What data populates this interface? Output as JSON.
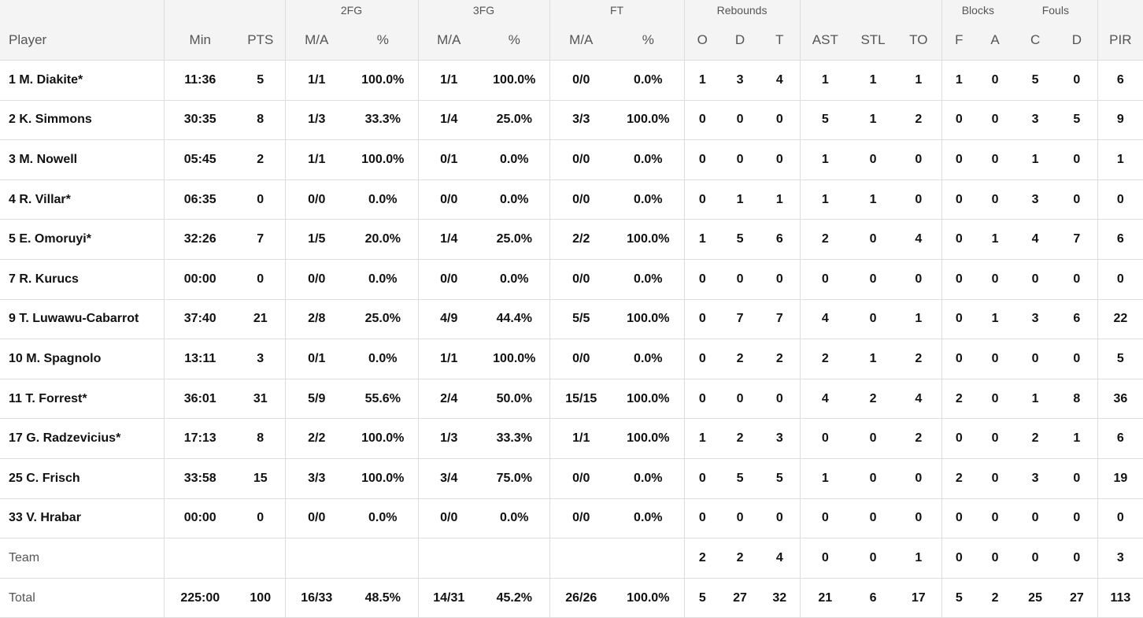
{
  "groups": {
    "fg2": "2FG",
    "fg3": "3FG",
    "ft": "FT",
    "reb": "Rebounds",
    "blocks": "Blocks",
    "fouls": "Fouls"
  },
  "columns": [
    "Player",
    "Min",
    "PTS",
    "M/A",
    "%",
    "M/A",
    "%",
    "M/A",
    "%",
    "O",
    "D",
    "T",
    "AST",
    "STL",
    "TO",
    "F",
    "A",
    "C",
    "D",
    "PIR"
  ],
  "rows": [
    [
      "1 M. Diakite*",
      "11:36",
      "5",
      "1/1",
      "100.0%",
      "1/1",
      "100.0%",
      "0/0",
      "0.0%",
      "1",
      "3",
      "4",
      "1",
      "1",
      "1",
      "1",
      "0",
      "5",
      "0",
      "6"
    ],
    [
      "2 K. Simmons",
      "30:35",
      "8",
      "1/3",
      "33.3%",
      "1/4",
      "25.0%",
      "3/3",
      "100.0%",
      "0",
      "0",
      "0",
      "5",
      "1",
      "2",
      "0",
      "0",
      "3",
      "5",
      "9"
    ],
    [
      "3 M. Nowell",
      "05:45",
      "2",
      "1/1",
      "100.0%",
      "0/1",
      "0.0%",
      "0/0",
      "0.0%",
      "0",
      "0",
      "0",
      "1",
      "0",
      "0",
      "0",
      "0",
      "1",
      "0",
      "1"
    ],
    [
      "4 R. Villar*",
      "06:35",
      "0",
      "0/0",
      "0.0%",
      "0/0",
      "0.0%",
      "0/0",
      "0.0%",
      "0",
      "1",
      "1",
      "1",
      "1",
      "0",
      "0",
      "0",
      "3",
      "0",
      "0"
    ],
    [
      "5 E. Omoruyi*",
      "32:26",
      "7",
      "1/5",
      "20.0%",
      "1/4",
      "25.0%",
      "2/2",
      "100.0%",
      "1",
      "5",
      "6",
      "2",
      "0",
      "4",
      "0",
      "1",
      "4",
      "7",
      "6"
    ],
    [
      "7 R. Kurucs",
      "00:00",
      "0",
      "0/0",
      "0.0%",
      "0/0",
      "0.0%",
      "0/0",
      "0.0%",
      "0",
      "0",
      "0",
      "0",
      "0",
      "0",
      "0",
      "0",
      "0",
      "0",
      "0"
    ],
    [
      "9 T. Luwawu-Cabarrot",
      "37:40",
      "21",
      "2/8",
      "25.0%",
      "4/9",
      "44.4%",
      "5/5",
      "100.0%",
      "0",
      "7",
      "7",
      "4",
      "0",
      "1",
      "0",
      "1",
      "3",
      "6",
      "22"
    ],
    [
      "10 M. Spagnolo",
      "13:11",
      "3",
      "0/1",
      "0.0%",
      "1/1",
      "100.0%",
      "0/0",
      "0.0%",
      "0",
      "2",
      "2",
      "2",
      "1",
      "2",
      "0",
      "0",
      "0",
      "0",
      "5"
    ],
    [
      "11 T. Forrest*",
      "36:01",
      "31",
      "5/9",
      "55.6%",
      "2/4",
      "50.0%",
      "15/15",
      "100.0%",
      "0",
      "0",
      "0",
      "4",
      "2",
      "4",
      "2",
      "0",
      "1",
      "8",
      "36"
    ],
    [
      "17 G. Radzevicius*",
      "17:13",
      "8",
      "2/2",
      "100.0%",
      "1/3",
      "33.3%",
      "1/1",
      "100.0%",
      "1",
      "2",
      "3",
      "0",
      "0",
      "2",
      "0",
      "0",
      "2",
      "1",
      "6"
    ],
    [
      "25 C. Frisch",
      "33:58",
      "15",
      "3/3",
      "100.0%",
      "3/4",
      "75.0%",
      "0/0",
      "0.0%",
      "0",
      "5",
      "5",
      "1",
      "0",
      "0",
      "2",
      "0",
      "3",
      "0",
      "19"
    ],
    [
      "33 V. Hrabar",
      "00:00",
      "0",
      "0/0",
      "0.0%",
      "0/0",
      "0.0%",
      "0/0",
      "0.0%",
      "0",
      "0",
      "0",
      "0",
      "0",
      "0",
      "0",
      "0",
      "0",
      "0",
      "0"
    ],
    [
      "Team",
      "",
      "",
      "",
      "",
      "",
      "",
      "",
      "",
      "2",
      "2",
      "4",
      "0",
      "0",
      "1",
      "0",
      "0",
      "0",
      "0",
      "3"
    ],
    [
      "Total",
      "225:00",
      "100",
      "16/33",
      "48.5%",
      "14/31",
      "45.2%",
      "26/26",
      "100.0%",
      "5",
      "27",
      "32",
      "21",
      "6",
      "17",
      "5",
      "2",
      "25",
      "27",
      "113"
    ]
  ]
}
